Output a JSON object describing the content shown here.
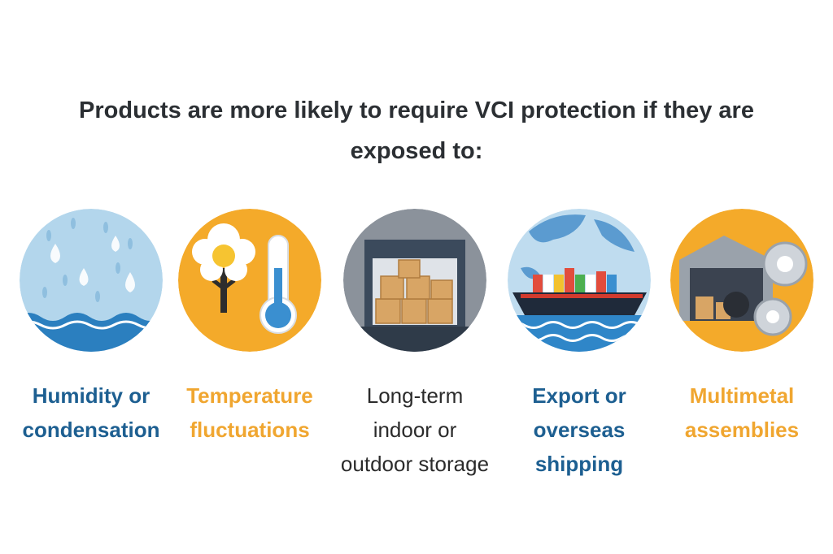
{
  "title_lines": [
    "Products are more likely to require VCI protection if they are",
    "exposed to:"
  ],
  "items": [
    {
      "lines": [
        "Humidity or",
        "condensation"
      ],
      "color": "#1d5f91",
      "bold": true
    },
    {
      "lines": [
        "Temperature",
        "fluctuations"
      ],
      "color": "#f0a630",
      "bold": true
    },
    {
      "lines": [
        "Long-term",
        "indoor or",
        "outdoor storage"
      ],
      "color": "#2b2b2b",
      "bold": false
    },
    {
      "lines": [
        "Export or",
        "overseas",
        "shipping"
      ],
      "color": "#1d5f91",
      "bold": true
    },
    {
      "lines": [
        "Multimetal",
        "assemblies"
      ],
      "color": "#f0a630",
      "bold": true
    }
  ]
}
